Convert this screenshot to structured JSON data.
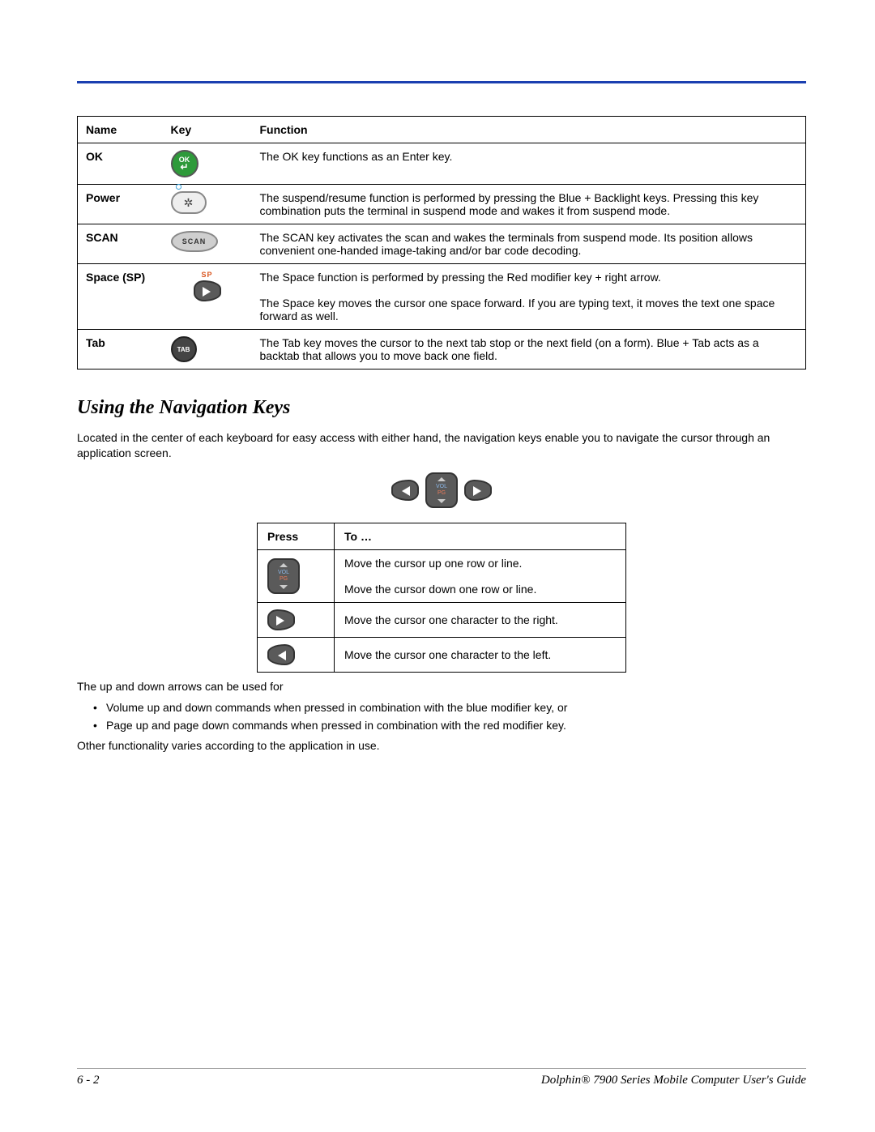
{
  "table1": {
    "headers": [
      "Name",
      "Key",
      "Function"
    ],
    "rows": [
      {
        "name": "OK",
        "icon": "ok",
        "func": "The OK key functions as an Enter key."
      },
      {
        "name": "Power",
        "icon": "power",
        "func": "The suspend/resume function is performed by pressing the Blue + Backlight keys. Pressing this key combination puts the terminal in suspend mode and wakes it from suspend mode."
      },
      {
        "name": "SCAN",
        "icon": "scan",
        "func": "The SCAN key activates the scan and wakes the terminals from suspend mode. Its position allows convenient one-handed image-taking and/or bar code decoding."
      },
      {
        "name": "Space (SP)",
        "icon": "sp",
        "func": "The Space function is performed by pressing the Red modifier key + right arrow.\n\nThe Space key moves the cursor one space forward. If you are typing text, it moves the text one space forward as well."
      },
      {
        "name": "Tab",
        "icon": "tab",
        "func": "The Tab key moves the cursor to the next tab stop or the next field (on a form). Blue + Tab acts as a backtab that allows you to move back one field."
      }
    ]
  },
  "section_title": "Using the Navigation Keys",
  "intro": "Located in the center of each keyboard for easy access with either hand, the navigation keys enable you to navigate the cursor through an application screen.",
  "table2": {
    "headers": [
      "Press",
      "To …"
    ],
    "rows": [
      {
        "icon": "volpg",
        "to": "Move the cursor up one row or line.\n\nMove the cursor down one row or line."
      },
      {
        "icon": "right",
        "to": "Move the cursor one character to the right."
      },
      {
        "icon": "left",
        "to": "Move the cursor one character to the left."
      }
    ]
  },
  "after_para": "The up and down arrows can be used for",
  "bullets": [
    "Volume up and down commands when pressed in combination with the blue modifier key, or",
    "Page up and page down commands when pressed in combination with the red modifier key."
  ],
  "closing": "Other functionality varies according to the application in use.",
  "footer": {
    "page": "6 - 2",
    "title": "Dolphin® 7900 Series Mobile Computer User's Guide"
  },
  "key_labels": {
    "ok_top": "OK",
    "ok_arrow": "↵",
    "scan": "SCAN",
    "sp": "SP",
    "tab": "TAB",
    "vol": "VOL",
    "pg": "PG"
  }
}
